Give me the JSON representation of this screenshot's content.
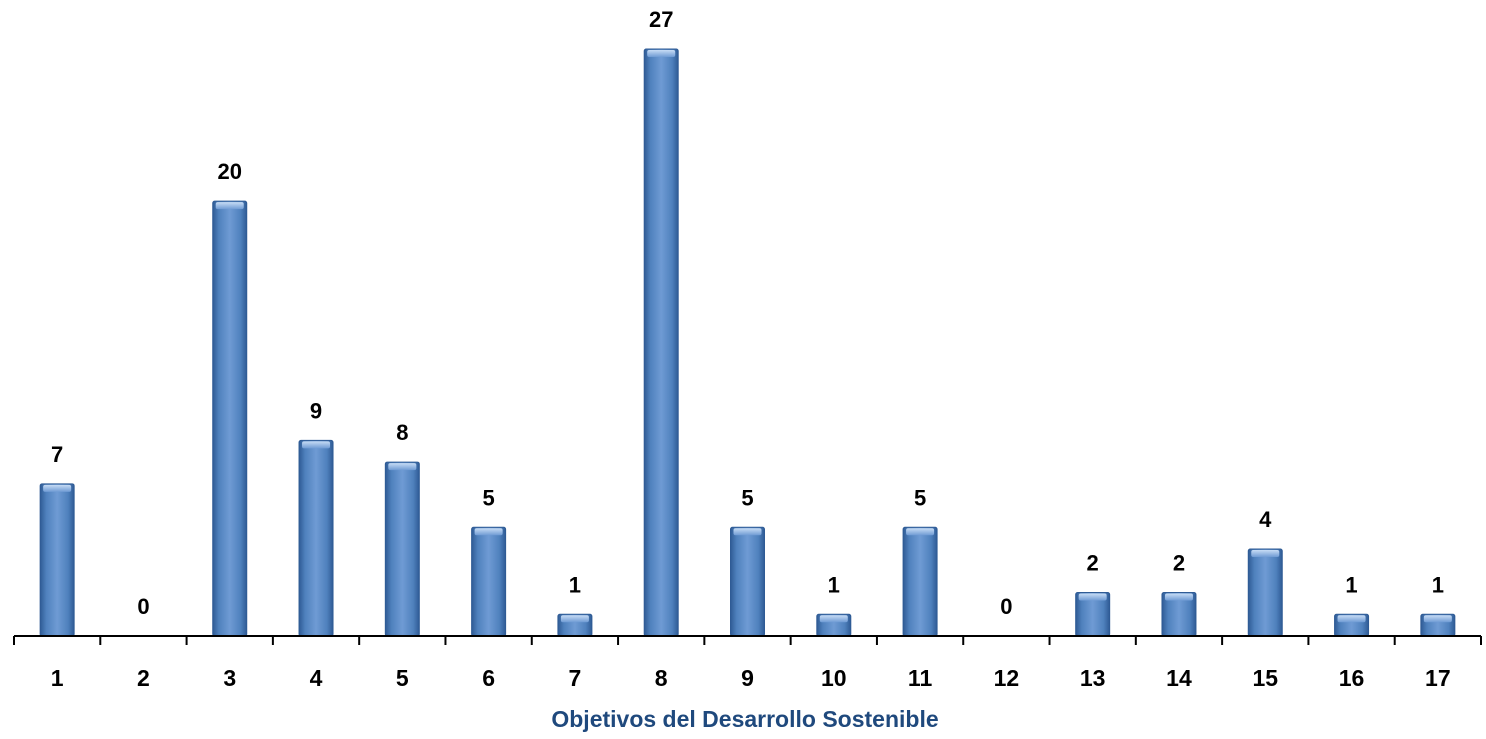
{
  "chart_data": {
    "type": "bar",
    "categories": [
      "1",
      "2",
      "3",
      "4",
      "5",
      "6",
      "7",
      "8",
      "9",
      "10",
      "11",
      "12",
      "13",
      "14",
      "15",
      "16",
      "17"
    ],
    "values": [
      7,
      0,
      20,
      9,
      8,
      5,
      1,
      27,
      5,
      1,
      5,
      0,
      2,
      2,
      4,
      1,
      1
    ],
    "title": "",
    "xlabel": "Objetivos del Desarrollo Sostenible",
    "ylabel": "",
    "ylim": [
      0,
      27
    ],
    "grid": false,
    "legend": "none",
    "data_labels": true
  },
  "colors": {
    "bar": "#4f81bd",
    "bar_light": "#8db3e2",
    "bar_dark": "#2f5b95",
    "axis": "#000000",
    "xlabel": "#1f497d"
  }
}
